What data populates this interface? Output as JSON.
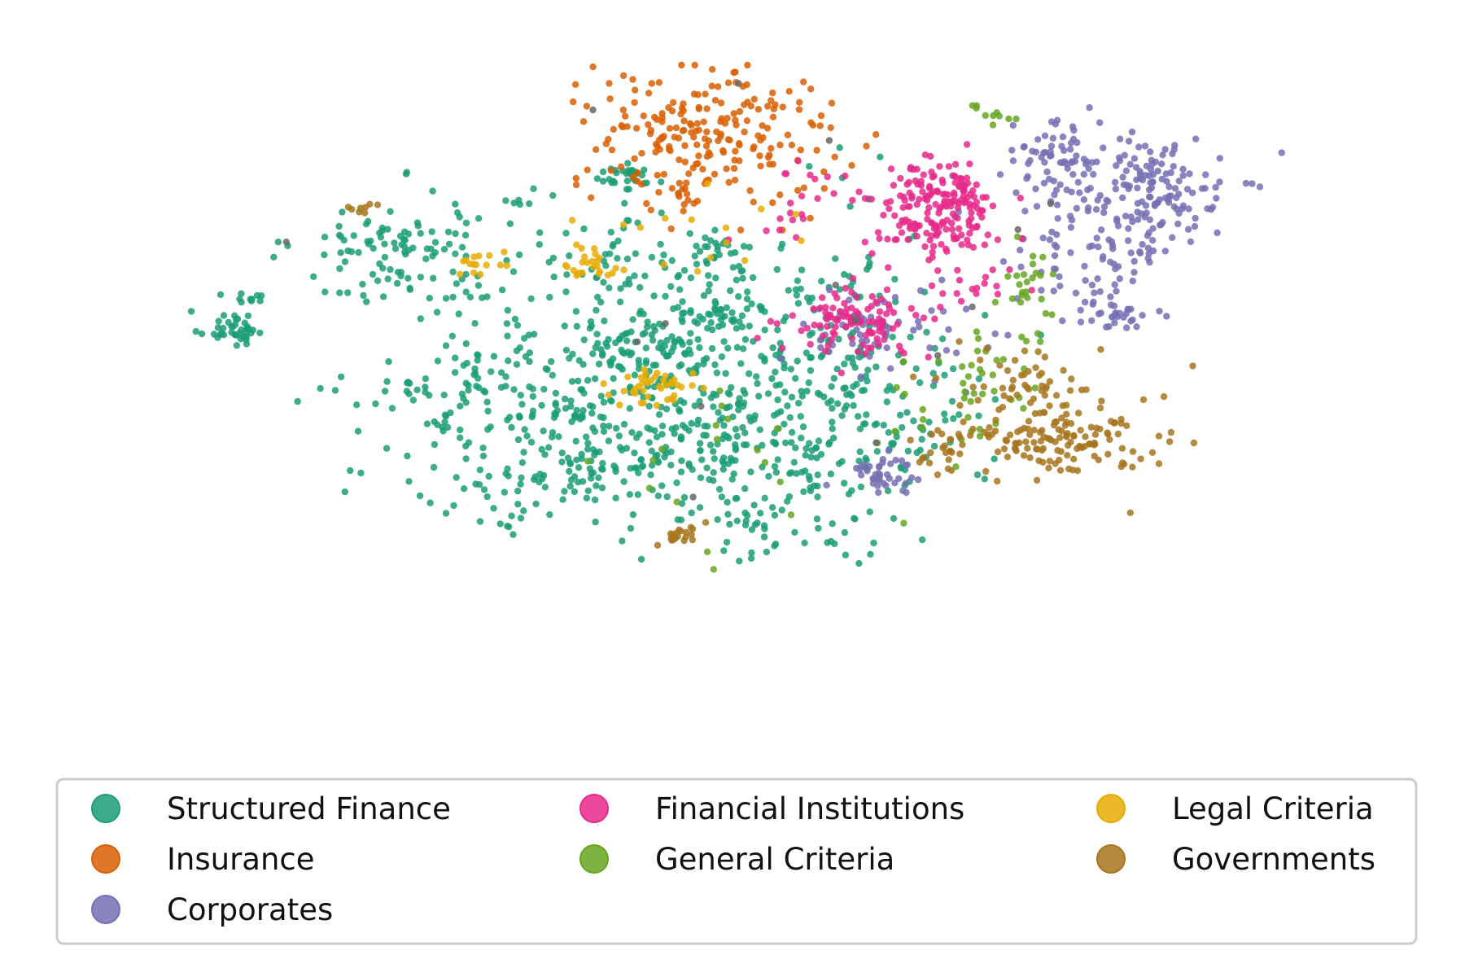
{
  "chart_data": {
    "type": "scatter",
    "title": "",
    "xlabel": "",
    "ylabel": "",
    "axes_visible": false,
    "grid": false,
    "legend_placement": "bottom",
    "legend_columns": 3,
    "xlim": [
      0,
      100
    ],
    "ylim": [
      0,
      100
    ],
    "series": [
      {
        "name": "Structured Finance",
        "color": "#1b9e77",
        "clusters": [
          [
            4,
            58,
            1.5,
            1.4,
            40
          ],
          [
            5,
            63,
            0.9,
            0.6,
            10
          ],
          [
            20,
            70,
            5,
            5,
            110
          ],
          [
            27,
            48,
            6,
            4,
            90
          ],
          [
            35,
            37,
            8,
            6,
            150
          ],
          [
            40,
            67,
            6,
            6,
            70
          ],
          [
            42,
            48,
            7,
            6,
            120
          ],
          [
            55,
            55,
            8,
            7,
            190
          ],
          [
            50,
            38,
            9,
            6,
            150
          ],
          [
            58,
            38,
            5,
            6,
            70
          ],
          [
            54,
            25,
            4,
            3,
            30
          ],
          [
            40,
            82,
            1.5,
            1.2,
            30
          ],
          [
            49,
            71,
            1.2,
            1.2,
            25
          ],
          [
            49,
            60,
            1.8,
            1.8,
            35
          ],
          [
            41,
            55,
            3,
            2,
            40
          ],
          [
            32,
            63,
            6,
            10,
            30
          ],
          [
            60,
            66,
            3,
            8,
            30
          ],
          [
            67,
            42,
            2,
            3,
            15
          ]
        ]
      },
      {
        "name": "Insurance",
        "color": "#d95f02",
        "clusters": [
          [
            47,
            89,
            6,
            5,
            200
          ],
          [
            45,
            79,
            2,
            1,
            15
          ],
          [
            56,
            80,
            3,
            3,
            10
          ]
        ]
      },
      {
        "name": "Corporates",
        "color": "#7570b3",
        "clusters": [
          [
            80,
            85,
            2.5,
            3,
            70
          ],
          [
            87,
            79,
            4,
            5,
            160
          ],
          [
            81,
            68,
            4,
            4,
            50
          ],
          [
            85,
            60,
            2,
            2,
            30
          ],
          [
            63,
            35,
            1.5,
            2,
            40
          ],
          [
            60,
            58,
            3,
            3,
            25
          ],
          [
            67,
            55,
            4,
            5,
            30
          ]
        ]
      },
      {
        "name": "Financial Institutions",
        "color": "#e7298a",
        "clusters": [
          [
            68,
            77,
            3,
            4,
            190
          ],
          [
            61,
            59,
            3,
            2.5,
            100
          ],
          [
            71,
            66,
            2.5,
            3,
            20
          ],
          [
            55,
            77,
            3,
            4,
            20
          ]
        ]
      },
      {
        "name": "General Criteria",
        "color": "#66a61e",
        "clusters": [
          [
            72,
            48,
            3,
            5,
            40
          ],
          [
            77,
            64,
            1.5,
            4,
            25
          ],
          [
            73,
            92,
            1.5,
            1.5,
            10
          ],
          [
            55,
            35,
            8,
            7,
            20
          ]
        ]
      },
      {
        "name": "Legal Criteria",
        "color": "#e6ab02",
        "clusters": [
          [
            37,
            68,
            1.2,
            1.3,
            25
          ],
          [
            43,
            49,
            2,
            1.5,
            40
          ],
          [
            26,
            68,
            1.5,
            0.8,
            15
          ],
          [
            45,
            72,
            5,
            6,
            15
          ]
        ]
      },
      {
        "name": "Governments",
        "color": "#a6761d",
        "clusters": [
          [
            79,
            41,
            4,
            3,
            130
          ],
          [
            76,
            50,
            3,
            3,
            40
          ],
          [
            69,
            39,
            1,
            2,
            25
          ],
          [
            45,
            25,
            1,
            1,
            20
          ],
          [
            16,
            77,
            0.7,
            0.4,
            8
          ],
          [
            84,
            42,
            4,
            6,
            15
          ]
        ]
      },
      {
        "name": "",
        "color": "#666666",
        "clusters": [
          [
            50,
            65,
            20,
            15,
            15
          ]
        ]
      }
    ]
  },
  "legend": {
    "items": [
      {
        "label": "Structured Finance",
        "color": "#1b9e77"
      },
      {
        "label": "Insurance",
        "color": "#d95f02"
      },
      {
        "label": "Corporates",
        "color": "#7570b3"
      },
      {
        "label": "Financial Institutions",
        "color": "#e7298a"
      },
      {
        "label": "General Criteria",
        "color": "#66a61e"
      },
      {
        "label": "Legal Criteria",
        "color": "#e6ab02"
      },
      {
        "label": "Governments",
        "color": "#a6761d"
      }
    ]
  }
}
